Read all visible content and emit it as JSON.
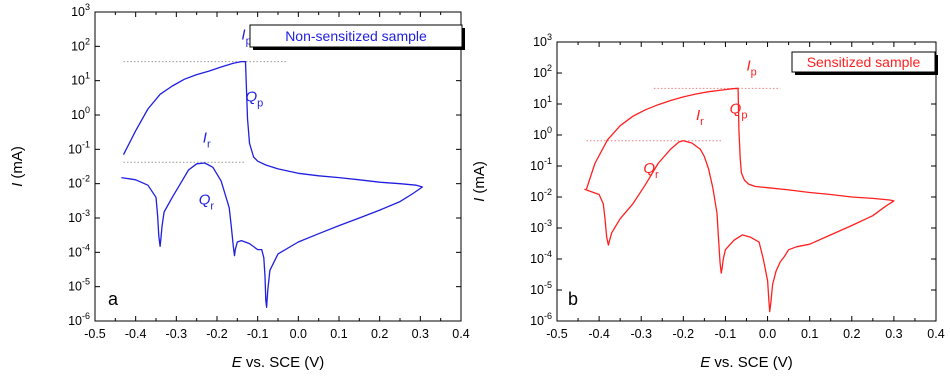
{
  "chart_data": [
    {
      "type": "line",
      "panel_letter": "a",
      "legend": "Non-sensitized sample",
      "color": "#1f1fe0",
      "xlabel": {
        "italic": "E",
        "rest": " vs. SCE (V)"
      },
      "ylabel": {
        "italic": "I",
        "rest": " (mA)"
      },
      "xlim": [
        -0.5,
        0.4
      ],
      "ylim_log10": [
        -6,
        3
      ],
      "y_scale": "log",
      "x_ticks": [
        "-0.5",
        "-0.4",
        "-0.3",
        "-0.2",
        "-0.1",
        "0.0",
        "0.1",
        "0.2",
        "0.3",
        "0.4"
      ],
      "y_tick_exponents": [
        "-6",
        "-5",
        "-4",
        "-3",
        "-2",
        "-1",
        "0",
        "1",
        "2",
        "3"
      ],
      "annotations": [
        {
          "base": "I",
          "sub": "p",
          "x": -0.14,
          "y": 158
        },
        {
          "base": "Q",
          "sub": "p",
          "x": -0.13,
          "y": 2.5
        },
        {
          "base": "I",
          "sub": "r",
          "x": -0.235,
          "y": 0.16
        },
        {
          "base": "Q",
          "sub": "r",
          "x": -0.245,
          "y": 0.0025
        }
      ],
      "reference_lines": [
        {
          "x": [
            -0.43,
            -0.03
          ],
          "y": 36
        },
        {
          "x": [
            -0.43,
            -0.13
          ],
          "y": 0.042
        }
      ],
      "series": [
        {
          "x": [
            -0.43,
            -0.4,
            -0.37,
            -0.34,
            -0.31,
            -0.28,
            -0.25,
            -0.22,
            -0.19,
            -0.16,
            -0.14,
            -0.13,
            -0.125,
            -0.12,
            -0.11,
            -0.1,
            -0.08,
            -0.05,
            0.0,
            0.05,
            0.1,
            0.15,
            0.2,
            0.25,
            0.29,
            0.305,
            0.28,
            0.25,
            0.2,
            0.15,
            0.1,
            0.05,
            0.0,
            -0.05,
            -0.07,
            -0.075,
            -0.078,
            -0.08,
            -0.082,
            -0.085,
            -0.09,
            -0.1,
            -0.12,
            -0.14,
            -0.15,
            -0.155,
            -0.157,
            -0.16,
            -0.165,
            -0.17,
            -0.19,
            -0.21,
            -0.23,
            -0.25,
            -0.27,
            -0.29,
            -0.31,
            -0.33,
            -0.335,
            -0.338,
            -0.34,
            -0.343,
            -0.346,
            -0.35,
            -0.37,
            -0.4,
            -0.435
          ],
          "y": [
            0.07,
            0.35,
            1.5,
            4,
            7,
            11,
            15,
            19,
            25,
            32,
            36,
            36,
            0.8,
            0.15,
            0.06,
            0.045,
            0.035,
            0.027,
            0.02,
            0.017,
            0.015,
            0.013,
            0.011,
            0.01,
            0.009,
            0.008,
            0.005,
            0.003,
            0.0017,
            0.001,
            0.0006,
            0.00035,
            0.0002,
            9e-05,
            3e-05,
            8e-06,
            2.5e-06,
            4e-06,
            2e-05,
            7e-05,
            0.00012,
            0.00012,
            0.00018,
            0.00022,
            0.0002,
            0.00012,
            8e-05,
            0.00015,
            0.0006,
            0.002,
            0.012,
            0.03,
            0.04,
            0.038,
            0.025,
            0.01,
            0.004,
            0.0015,
            0.0006,
            0.00025,
            0.00015,
            0.0003,
            0.0012,
            0.004,
            0.009,
            0.013,
            0.015
          ]
        }
      ]
    },
    {
      "type": "line",
      "panel_letter": "b",
      "legend": "Sensitized sample",
      "color": "#ff2020",
      "xlabel": {
        "italic": "E",
        "rest": " vs. SCE (V)"
      },
      "ylabel": {
        "italic": "I",
        "rest": " (mA)"
      },
      "xlim": [
        -0.5,
        0.4
      ],
      "ylim_log10": [
        -6,
        3
      ],
      "y_scale": "log",
      "x_ticks": [
        "-0.5",
        "-0.4",
        "-0.3",
        "-0.2",
        "-0.1",
        "0.0",
        "0.1",
        "0.2",
        "0.3",
        "0.4"
      ],
      "y_tick_exponents": [
        "-6",
        "-5",
        "-4",
        "-3",
        "-2",
        "-1",
        "0",
        "1",
        "2",
        "3"
      ],
      "annotations": [
        {
          "base": "I",
          "sub": "p",
          "x": -0.05,
          "y": 120
        },
        {
          "base": "Q",
          "sub": "p",
          "x": -0.09,
          "y": 5
        },
        {
          "base": "I",
          "sub": "r",
          "x": -0.17,
          "y": 3
        },
        {
          "base": "Q",
          "sub": "r",
          "x": -0.295,
          "y": 0.06
        }
      ],
      "reference_lines": [
        {
          "x": [
            -0.27,
            0.03
          ],
          "y": 32
        },
        {
          "x": [
            -0.43,
            -0.11
          ],
          "y": 0.65
        }
      ],
      "series": [
        {
          "x": [
            -0.43,
            -0.41,
            -0.38,
            -0.35,
            -0.32,
            -0.29,
            -0.26,
            -0.23,
            -0.2,
            -0.17,
            -0.14,
            -0.11,
            -0.085,
            -0.07,
            -0.068,
            -0.065,
            -0.062,
            -0.055,
            -0.045,
            -0.03,
            0.0,
            0.05,
            0.1,
            0.15,
            0.2,
            0.25,
            0.29,
            0.3,
            0.28,
            0.25,
            0.2,
            0.15,
            0.1,
            0.07,
            0.05,
            0.04,
            0.03,
            0.02,
            0.012,
            0.008,
            0.005,
            0.003,
            0.0,
            -0.01,
            -0.02,
            -0.04,
            -0.06,
            -0.08,
            -0.1,
            -0.105,
            -0.108,
            -0.11,
            -0.113,
            -0.117,
            -0.12,
            -0.13,
            -0.14,
            -0.15,
            -0.16,
            -0.18,
            -0.2,
            -0.21,
            -0.23,
            -0.26,
            -0.29,
            -0.32,
            -0.35,
            -0.37,
            -0.375,
            -0.378,
            -0.382,
            -0.386,
            -0.39,
            -0.4,
            -0.42,
            -0.435
          ],
          "y": [
            0.018,
            0.12,
            0.7,
            2,
            4,
            6.5,
            9.5,
            13,
            17,
            21,
            25,
            28,
            31,
            32,
            1.5,
            0.18,
            0.06,
            0.035,
            0.026,
            0.022,
            0.02,
            0.017,
            0.014,
            0.012,
            0.01,
            0.009,
            0.008,
            0.0075,
            0.005,
            0.0025,
            0.0012,
            0.0006,
            0.0003,
            0.00025,
            0.0002,
            0.00012,
            8e-05,
            4e-05,
            1.5e-05,
            4e-06,
            2e-06,
            5e-06,
            2e-05,
            0.0001,
            0.00035,
            0.0005,
            0.0006,
            0.0004,
            0.0002,
            0.0001,
            5e-05,
            3.5e-05,
            8e-05,
            0.0006,
            0.003,
            0.02,
            0.08,
            0.2,
            0.35,
            0.55,
            0.65,
            0.6,
            0.35,
            0.12,
            0.025,
            0.006,
            0.002,
            0.0007,
            0.0004,
            0.00028,
            0.0005,
            0.002,
            0.006,
            0.012,
            0.015,
            0.018
          ]
        }
      ]
    }
  ]
}
